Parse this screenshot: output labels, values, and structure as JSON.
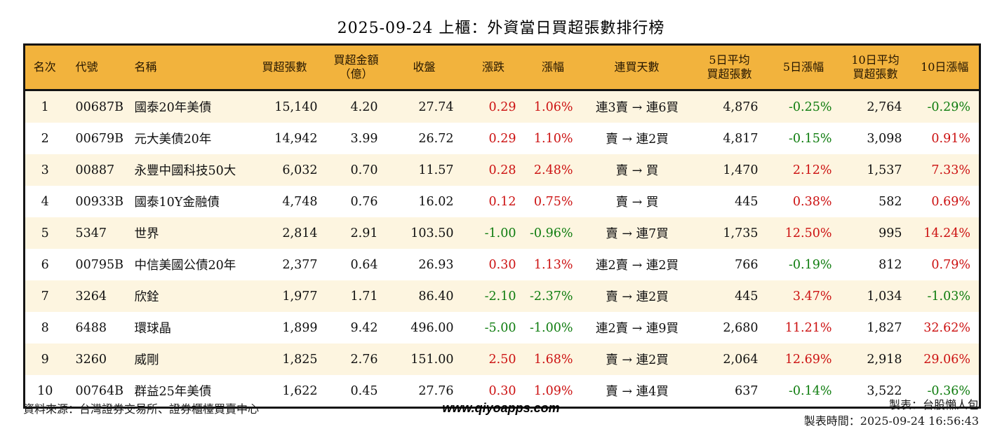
{
  "title": "2025-09-24 上櫃：外資當日買超張數排行榜",
  "colors": {
    "up_color": "#cc1111",
    "down_color": "#0e7c0e",
    "header_bg": "#f2b33d",
    "row_alt_bg": "#fdf5e0",
    "border_color": "#141414"
  },
  "chart_data": {
    "type": "table",
    "title": "2025-09-24 上櫃：外資當日買超張數排行榜",
    "columns": [
      "名次",
      "代號",
      "名稱",
      "買超張數",
      "買超金額\n（億）",
      "收盤",
      "漲跌",
      "漲幅",
      "連買天數",
      "5日平均\n買超張數",
      "5日漲幅",
      "10日平均\n買超張數",
      "10日漲幅"
    ],
    "signed_color_columns": [
      6,
      7,
      10,
      12
    ],
    "rows": [
      [
        "1",
        "00687B",
        "國泰20年美債",
        "15,140",
        "4.20",
        "27.74",
        "0.29",
        "1.06%",
        "連3賣 → 連6買",
        "4,876",
        "-0.25%",
        "2,764",
        "-0.29%"
      ],
      [
        "2",
        "00679B",
        "元大美債20年",
        "14,942",
        "3.99",
        "26.72",
        "0.29",
        "1.10%",
        "賣 → 連2買",
        "4,817",
        "-0.15%",
        "3,098",
        "0.91%"
      ],
      [
        "3",
        "00887",
        "永豐中國科技50大",
        "6,032",
        "0.70",
        "11.57",
        "0.28",
        "2.48%",
        "賣 → 買",
        "1,470",
        "2.12%",
        "1,537",
        "7.33%"
      ],
      [
        "4",
        "00933B",
        "國泰10Y金融債",
        "4,748",
        "0.76",
        "16.02",
        "0.12",
        "0.75%",
        "賣 → 買",
        "445",
        "0.38%",
        "582",
        "0.69%"
      ],
      [
        "5",
        "5347",
        "世界",
        "2,814",
        "2.91",
        "103.50",
        "-1.00",
        "-0.96%",
        "賣 → 連7買",
        "1,735",
        "12.50%",
        "995",
        "14.24%"
      ],
      [
        "6",
        "00795B",
        "中信美國公債20年",
        "2,377",
        "0.64",
        "26.93",
        "0.30",
        "1.13%",
        "連2賣 → 連2買",
        "766",
        "-0.19%",
        "812",
        "0.79%"
      ],
      [
        "7",
        "3264",
        "欣銓",
        "1,977",
        "1.71",
        "86.40",
        "-2.10",
        "-2.37%",
        "賣 → 連2買",
        "445",
        "3.47%",
        "1,034",
        "-1.03%"
      ],
      [
        "8",
        "6488",
        "環球晶",
        "1,899",
        "9.42",
        "496.00",
        "-5.00",
        "-1.00%",
        "連2賣 → 連9買",
        "2,680",
        "11.21%",
        "1,827",
        "32.62%"
      ],
      [
        "9",
        "3260",
        "威剛",
        "1,825",
        "2.76",
        "151.00",
        "2.50",
        "1.68%",
        "賣 → 連2買",
        "2,064",
        "12.69%",
        "2,918",
        "29.06%"
      ],
      [
        "10",
        "00764B",
        "群益25年美債",
        "1,622",
        "0.45",
        "27.76",
        "0.30",
        "1.09%",
        "賣 → 連4買",
        "637",
        "-0.14%",
        "3,522",
        "-0.36%"
      ]
    ]
  },
  "footer": {
    "source": "資料來源：台灣證券交易所、證券櫃檯買賣中心",
    "website": "www.qiyoapps.com",
    "made_by": "製表：台股懶人包",
    "made_at": "製表時間：2025-09-24 16:56:43"
  }
}
